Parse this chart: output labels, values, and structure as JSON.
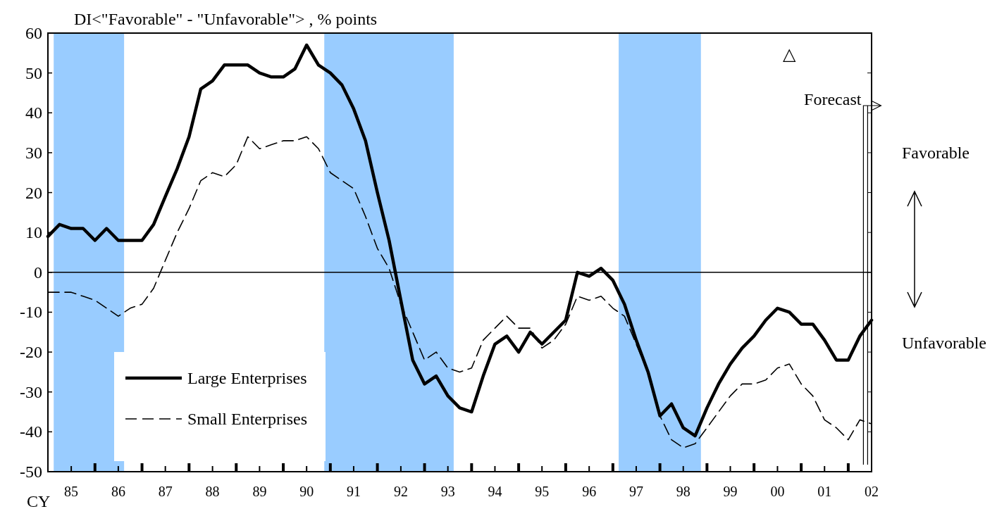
{
  "chart_data": {
    "type": "line",
    "ylabel": "DI<\"Favorable\" - \"Unfavorable\"> , % points",
    "x": [
      "1985-01",
      "1985-04",
      "1985-07",
      "1985-10",
      "1986-01",
      "1986-04",
      "1986-07",
      "1986-10",
      "1987-01",
      "1987-04",
      "1987-07",
      "1987-10",
      "1988-01",
      "1988-04",
      "1988-07",
      "1988-10",
      "1989-01",
      "1989-04",
      "1989-07",
      "1989-10",
      "1990-01",
      "1990-04",
      "1990-07",
      "1990-10",
      "1991-01",
      "1991-04",
      "1991-07",
      "1991-10",
      "1992-01",
      "1992-04",
      "1992-07",
      "1992-10",
      "1993-01",
      "1993-04",
      "1993-07",
      "1993-10",
      "1994-01",
      "1994-04",
      "1994-07",
      "1994-10",
      "1995-01",
      "1995-04",
      "1995-07",
      "1995-10",
      "1996-01",
      "1996-04",
      "1996-07",
      "1996-10",
      "1997-01",
      "1997-04",
      "1997-07",
      "1997-10",
      "1998-01",
      "1998-04",
      "1998-07",
      "1998-10",
      "1999-01",
      "1999-04",
      "1999-07",
      "1999-10",
      "2000-01",
      "2000-04",
      "2000-07",
      "2000-10",
      "2001-01",
      "2001-04",
      "2001-07",
      "2001-10",
      "2002-01",
      "2002-04",
      "2002-07"
    ],
    "series": [
      {
        "name": "Large Enterprises",
        "color": "#000000",
        "line_style": "solid",
        "values": [
          9,
          12,
          11,
          11,
          8,
          11,
          8,
          8,
          8,
          12,
          19,
          26,
          34,
          46,
          48,
          52,
          52,
          52,
          50,
          49,
          49,
          51,
          57,
          52,
          50,
          47,
          41,
          33,
          20,
          8,
          -7,
          -22,
          -28,
          -26,
          -31,
          -34,
          -35,
          -26,
          -18,
          -16,
          -20,
          -15,
          -18,
          -15,
          -12,
          0,
          -1,
          1,
          -2,
          -8,
          -17,
          -25,
          -36,
          -33,
          -39,
          -41,
          -34,
          -28,
          -23,
          -19,
          -16,
          -12,
          -9,
          -10,
          -13,
          -13,
          -17,
          -22,
          -22,
          -16,
          -12
        ]
      },
      {
        "name": "Small Enterprises",
        "color": "#000000",
        "line_style": "dashed",
        "values": [
          -5,
          -5,
          -5,
          -6,
          -7,
          -9,
          -11,
          -9,
          -8,
          -4,
          3,
          10,
          16,
          23,
          25,
          24,
          27,
          34,
          31,
          32,
          33,
          33,
          34,
          31,
          25,
          23,
          21,
          14,
          6,
          1,
          -8,
          -15,
          -22,
          -20,
          -24,
          -25,
          -24,
          -17,
          -14,
          -11,
          -14,
          -14,
          -19,
          -17,
          -13,
          -6,
          -7,
          -6,
          -9,
          -11,
          -18,
          -25,
          -36,
          -42,
          -44,
          -43,
          -39,
          -35,
          -31,
          -28,
          -28,
          -27,
          -24,
          -23,
          -28,
          -31,
          -37,
          -39,
          -42,
          -37,
          -38
        ]
      }
    ],
    "xlim": [
      "1985-01",
      "2002-07"
    ],
    "xticks": [
      {
        "value": "1985-07",
        "label": "85"
      },
      {
        "value": "1986-07",
        "label": "86"
      },
      {
        "value": "1987-07",
        "label": "87"
      },
      {
        "value": "1988-07",
        "label": "88"
      },
      {
        "value": "1989-07",
        "label": "89"
      },
      {
        "value": "1990-07",
        "label": "90"
      },
      {
        "value": "1991-07",
        "label": "91"
      },
      {
        "value": "1992-07",
        "label": "92"
      },
      {
        "value": "1993-07",
        "label": "93"
      },
      {
        "value": "1994-07",
        "label": "94"
      },
      {
        "value": "1995-07",
        "label": "95"
      },
      {
        "value": "1996-07",
        "label": "96"
      },
      {
        "value": "1997-07",
        "label": "97"
      },
      {
        "value": "1998-07",
        "label": "98"
      },
      {
        "value": "1999-07",
        "label": "99"
      },
      {
        "value": "2000-07",
        "label": "00"
      },
      {
        "value": "2001-07",
        "label": "01"
      },
      {
        "value": "2002-07",
        "label": "02"
      },
      {
        "value": "1986-01",
        "label": null
      },
      {
        "value": "1987-01",
        "label": null
      },
      {
        "value": "1988-01",
        "label": null
      },
      {
        "value": "1989-01",
        "label": null
      },
      {
        "value": "1990-01",
        "label": null
      },
      {
        "value": "1991-01",
        "label": null
      },
      {
        "value": "1992-01",
        "label": null
      },
      {
        "value": "1993-01",
        "label": null
      },
      {
        "value": "1994-01",
        "label": null
      },
      {
        "value": "1995-01",
        "label": null
      },
      {
        "value": "1996-01",
        "label": null
      },
      {
        "value": "1997-01",
        "label": null
      },
      {
        "value": "1998-01",
        "label": null
      },
      {
        "value": "1999-01",
        "label": null
      },
      {
        "value": "2000-01",
        "label": null
      },
      {
        "value": "2001-01",
        "label": null
      },
      {
        "value": "2002-01",
        "label": null
      }
    ],
    "ylim": [
      -50,
      60
    ],
    "yticks": [
      -50,
      -40,
      -30,
      -20,
      -10,
      0,
      10,
      20,
      30,
      40,
      50,
      60
    ],
    "bands": [
      {
        "axis": "x",
        "from": "1985-02-15",
        "to": "1986-08-15",
        "color": "#99ccff"
      },
      {
        "axis": "x",
        "from": "1990-11-15",
        "to": "1993-08-15",
        "color": "#99ccff"
      },
      {
        "axis": "x",
        "from": "1997-02-15",
        "to": "1998-11-15",
        "color": "#99ccff"
      }
    ],
    "ref_lines": [
      {
        "axis": "y",
        "value": 0,
        "color": "#000000"
      },
      {
        "axis": "x",
        "value": "2002-05-15",
        "label": "Forecast",
        "color": "#000000"
      }
    ],
    "annotations": [
      "△",
      "Favorable",
      "Unfavorable",
      "CY"
    ],
    "legend": "bottom left",
    "grid": false,
    "marker": "none"
  }
}
